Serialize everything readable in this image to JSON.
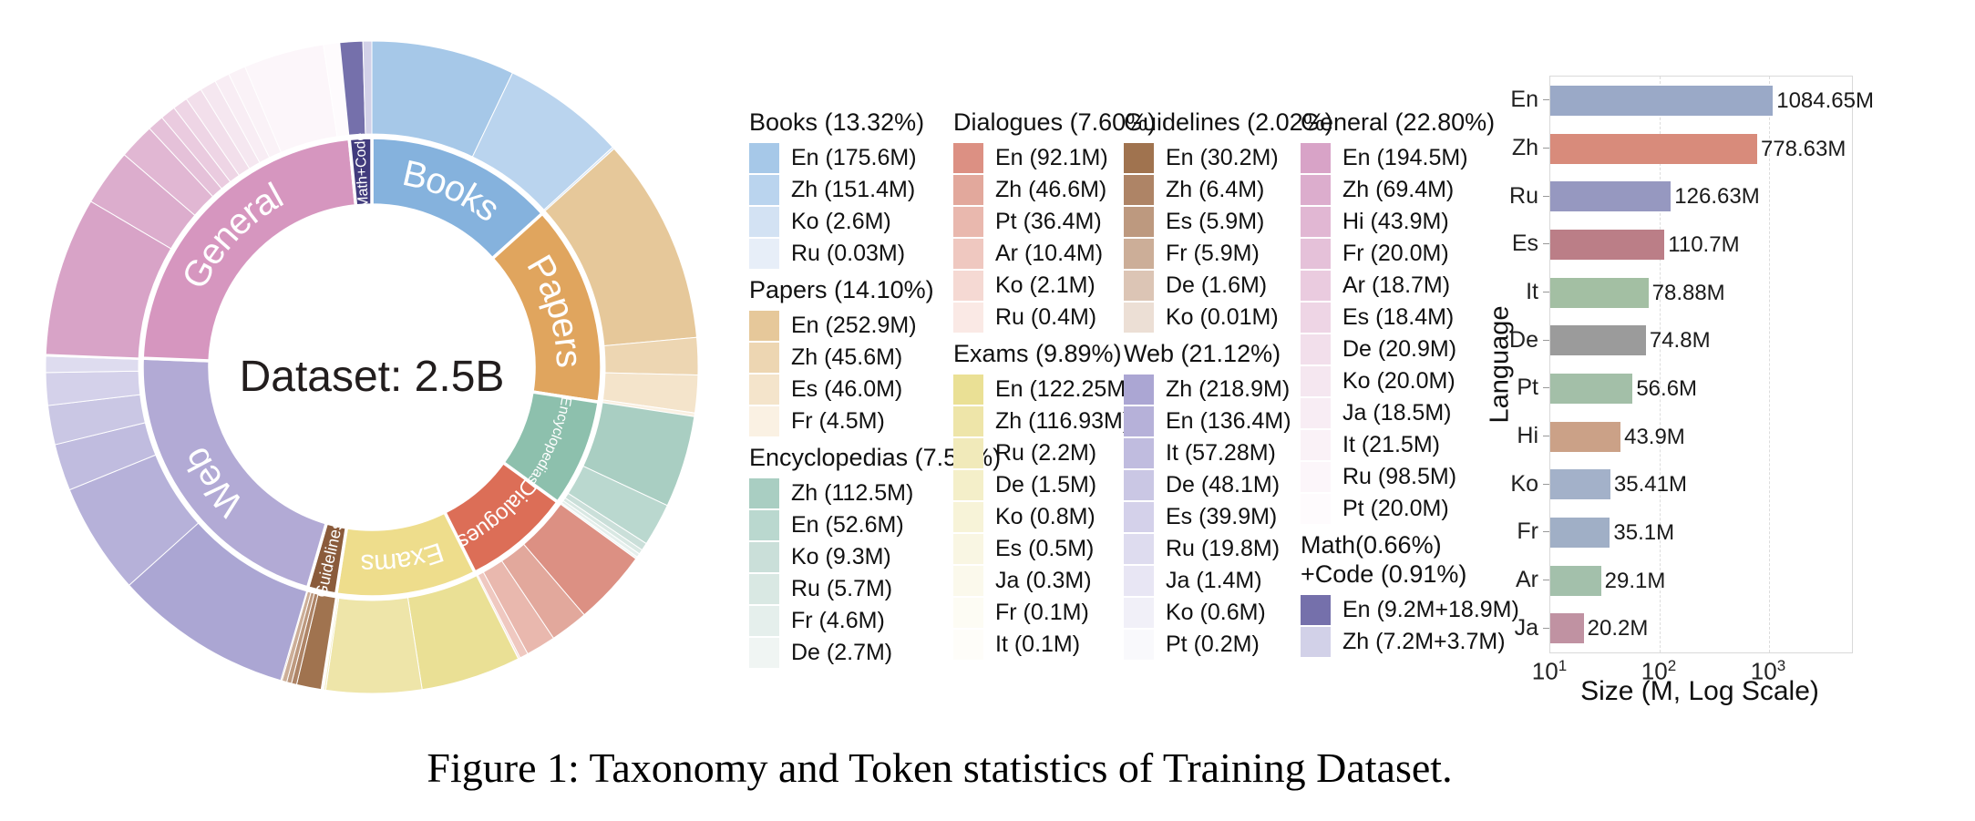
{
  "figure_caption": "Figure 1: Taxonomy and Token statistics of Training Dataset.",
  "legend": {
    "columns": [
      [
        0,
        1,
        2
      ],
      [
        3,
        4
      ],
      [
        5,
        6
      ],
      [
        7,
        8
      ]
    ]
  },
  "chart_data": [
    {
      "type": "sunburst",
      "center_label": "Dataset: 2.5B",
      "categories": [
        {
          "name": "Books",
          "pct": 13.32,
          "legend_title": "Books (13.32%)",
          "color": "#85b2dd",
          "label": {
            "style": "arc",
            "size": 40
          },
          "items": [
            {
              "label": "En (175.6M)",
              "size": 175.6,
              "color": "#a6c8e8"
            },
            {
              "label": "Zh (151.4M)",
              "size": 151.4,
              "color": "#bad4ee"
            },
            {
              "label": "Ko (2.6M)",
              "size": 2.6,
              "color": "#d3e2f3"
            },
            {
              "label": "Ru (0.03M)",
              "size": 0.03,
              "color": "#e7eef8"
            }
          ]
        },
        {
          "name": "Papers",
          "pct": 14.1,
          "legend_title": "Papers (14.10%)",
          "color": "#e0a55e",
          "label": {
            "style": "arc",
            "size": 40
          },
          "items": [
            {
              "label": "En (252.9M)",
              "size": 252.9,
              "color": "#e6c89a"
            },
            {
              "label": "Zh (45.6M)",
              "size": 45.6,
              "color": "#edd6b2"
            },
            {
              "label": "Es (46.0M)",
              "size": 46.0,
              "color": "#f4e4cb"
            },
            {
              "label": "Fr (4.5M)",
              "size": 4.5,
              "color": "#faf1e3"
            }
          ]
        },
        {
          "name": "Encyclopedias",
          "pct": 7.57,
          "legend_title": "Encyclopedias (7.57%)",
          "color": "#8dc0ad",
          "label": {
            "style": "arc",
            "size": 16
          },
          "items": [
            {
              "label": "Zh (112.5M)",
              "size": 112.5,
              "color": "#a9cec2"
            },
            {
              "label": "En (52.6M)",
              "size": 52.6,
              "color": "#bad8cf"
            },
            {
              "label": "Ko (9.3M)",
              "size": 9.3,
              "color": "#cadfd9"
            },
            {
              "label": "Ru (5.7M)",
              "size": 5.7,
              "color": "#d9e8e3"
            },
            {
              "label": "Fr (4.6M)",
              "size": 4.6,
              "color": "#e5efec"
            },
            {
              "label": "De (2.7M)",
              "size": 2.7,
              "color": "#f0f5f3"
            }
          ]
        },
        {
          "name": "Dialogues",
          "pct": 7.6,
          "legend_title": "Dialogues (7.60%)",
          "color": "#dc6e57",
          "label": {
            "style": "arc",
            "size": 24
          },
          "items": [
            {
              "label": "En (92.1M)",
              "size": 92.1,
              "color": "#dc9083"
            },
            {
              "label": "Zh (46.6M)",
              "size": 46.6,
              "color": "#e2a89c"
            },
            {
              "label": "Pt (36.4M)",
              "size": 36.4,
              "color": "#e9b8ae"
            },
            {
              "label": "Ar (10.4M)",
              "size": 10.4,
              "color": "#efc8c0"
            },
            {
              "label": "Ko (2.1M)",
              "size": 2.1,
              "color": "#f5d9d3"
            },
            {
              "label": "Ru (0.4M)",
              "size": 0.4,
              "color": "#fae9e5"
            }
          ]
        },
        {
          "name": "Exams",
          "pct": 9.89,
          "legend_title": "Exams (9.89%)",
          "color": "#eedd8c",
          "label": {
            "style": "arc",
            "size": 30
          },
          "items": [
            {
              "label": "En (122.25M)",
              "size": 122.25,
              "color": "#eae095"
            },
            {
              "label": "Zh (116.93M)",
              "size": 116.93,
              "color": "#eee5a9"
            },
            {
              "label": "Ru (2.2M)",
              "size": 2.2,
              "color": "#f1eaba"
            },
            {
              "label": "De (1.5M)",
              "size": 1.5,
              "color": "#f4efc9"
            },
            {
              "label": "Ko (0.8M)",
              "size": 0.8,
              "color": "#f7f3d8"
            },
            {
              "label": "Es (0.5M)",
              "size": 0.5,
              "color": "#f9f6e3"
            },
            {
              "label": "Ja (0.3M)",
              "size": 0.3,
              "color": "#fbf9ec"
            },
            {
              "label": "Fr (0.1M)",
              "size": 0.1,
              "color": "#fdfcf4"
            },
            {
              "label": "It (0.1M)",
              "size": 0.1,
              "color": "#fefdf9"
            }
          ]
        },
        {
          "name": "Guidelines",
          "pct": 2.02,
          "legend_title": "Guidelines (2.02%)",
          "color": "#8a5b3b",
          "label": {
            "style": "radial",
            "size": 18,
            "rotate_offset": 90
          },
          "items": [
            {
              "label": "En (30.2M)",
              "size": 30.2,
              "color": "#a0734f"
            },
            {
              "label": "Zh (6.4M)",
              "size": 6.4,
              "color": "#ae8466"
            },
            {
              "label": "Es (5.9M)",
              "size": 5.9,
              "color": "#bd997f"
            },
            {
              "label": "Fr (5.9M)",
              "size": 5.9,
              "color": "#ccae98"
            },
            {
              "label": "De (1.6M)",
              "size": 1.6,
              "color": "#dcc5b5"
            },
            {
              "label": "Ko (0.01M)",
              "size": 0.01,
              "color": "#ecdfd5"
            }
          ]
        },
        {
          "name": "Web",
          "pct": 21.12,
          "legend_title": "Web (21.12%)",
          "color": "#b2aad5",
          "label": {
            "style": "arc",
            "size": 40
          },
          "items": [
            {
              "label": "Zh (218.9M)",
              "size": 218.9,
              "color": "#aba6d3"
            },
            {
              "label": "En (136.4M)",
              "size": 136.4,
              "color": "#b6b1d9"
            },
            {
              "label": "It (57.28M)",
              "size": 57.28,
              "color": "#c0bcdf"
            },
            {
              "label": "De (48.1M)",
              "size": 48.1,
              "color": "#cac7e4"
            },
            {
              "label": "Es (39.9M)",
              "size": 39.9,
              "color": "#d4d1ea"
            },
            {
              "label": "Ru (19.8M)",
              "size": 19.8,
              "color": "#dedcef"
            },
            {
              "label": "Ja (1.4M)",
              "size": 1.4,
              "color": "#e8e6f4"
            },
            {
              "label": "Ko (0.6M)",
              "size": 0.6,
              "color": "#f1f0f8"
            },
            {
              "label": "Pt (0.2M)",
              "size": 0.2,
              "color": "#f9f9fc"
            }
          ]
        },
        {
          "name": "General",
          "pct": 22.8,
          "legend_title": "General (22.80%)",
          "color": "#d696bf",
          "label": {
            "style": "arc",
            "size": 40
          },
          "items": [
            {
              "label": "En (194.5M)",
              "size": 194.5,
              "color": "#d8a3c7"
            },
            {
              "label": "Zh (69.4M)",
              "size": 69.4,
              "color": "#dcadcd"
            },
            {
              "label": "Hi (43.9M)",
              "size": 43.9,
              "color": "#e1b7d3"
            },
            {
              "label": "Fr (20.0M)",
              "size": 20.0,
              "color": "#e5c1d9"
            },
            {
              "label": "Ar (18.7M)",
              "size": 18.7,
              "color": "#eacbdf"
            },
            {
              "label": "Es (18.4M)",
              "size": 18.4,
              "color": "#eed5e5"
            },
            {
              "label": "De (20.9M)",
              "size": 20.9,
              "color": "#f2dfeb"
            },
            {
              "label": "Ko (20.0M)",
              "size": 20.0,
              "color": "#f5e7f0"
            },
            {
              "label": "Ja (18.5M)",
              "size": 18.5,
              "color": "#f8edf4"
            },
            {
              "label": "It (21.5M)",
              "size": 21.5,
              "color": "#faf2f7"
            },
            {
              "label": "Ru (98.5M)",
              "size": 98.5,
              "color": "#fcf6fa"
            },
            {
              "label": "Pt (20.0M)",
              "size": 20.0,
              "color": "#fefbfd"
            }
          ]
        },
        {
          "name": "Math+Code",
          "pct": 1.57,
          "legend_title": "Math(0.66%)\n+Code (0.91%)",
          "color": "#413b7d",
          "label": {
            "style": "radial",
            "size": 16,
            "rotate_offset": -450
          },
          "items": [
            {
              "label": "En (9.2M+18.9M)",
              "size": 28.1,
              "color": "#7570ab"
            },
            {
              "label": "Zh (7.2M+3.7M)",
              "size": 10.9,
              "color": "#d2d1e8"
            }
          ]
        }
      ]
    },
    {
      "type": "bar",
      "orientation": "horizontal",
      "x_scale": "log",
      "xlabel": "Size (M, Log Scale)",
      "ylabel": "Language",
      "x_ticks": [
        "10^1",
        "10^2",
        "10^3"
      ],
      "x_range": [
        10,
        5728
      ],
      "grid": true,
      "categories": [
        "En",
        "Zh",
        "Ru",
        "Es",
        "It",
        "De",
        "Pt",
        "Hi",
        "Ko",
        "Fr",
        "Ar",
        "Ja"
      ],
      "values": [
        1084.65,
        778.63,
        126.63,
        110.7,
        78.88,
        74.8,
        56.6,
        43.9,
        35.41,
        35.1,
        29.1,
        20.2
      ],
      "labels": [
        "1084.65M",
        "778.63M",
        "126.63M",
        "110.7M",
        "78.88M",
        "74.8M",
        "56.6M",
        "43.9M",
        "35.41M",
        "35.1M",
        "29.1M",
        "20.2M"
      ],
      "colors": [
        "#9aa9c7",
        "#d88b7b",
        "#9698c0",
        "#bb7e87",
        "#a3bfa3",
        "#9b9b9b",
        "#a3bfa8",
        "#cba187",
        "#a3b1c9",
        "#a0afc6",
        "#a3c0ab",
        "#c092a2"
      ]
    }
  ]
}
